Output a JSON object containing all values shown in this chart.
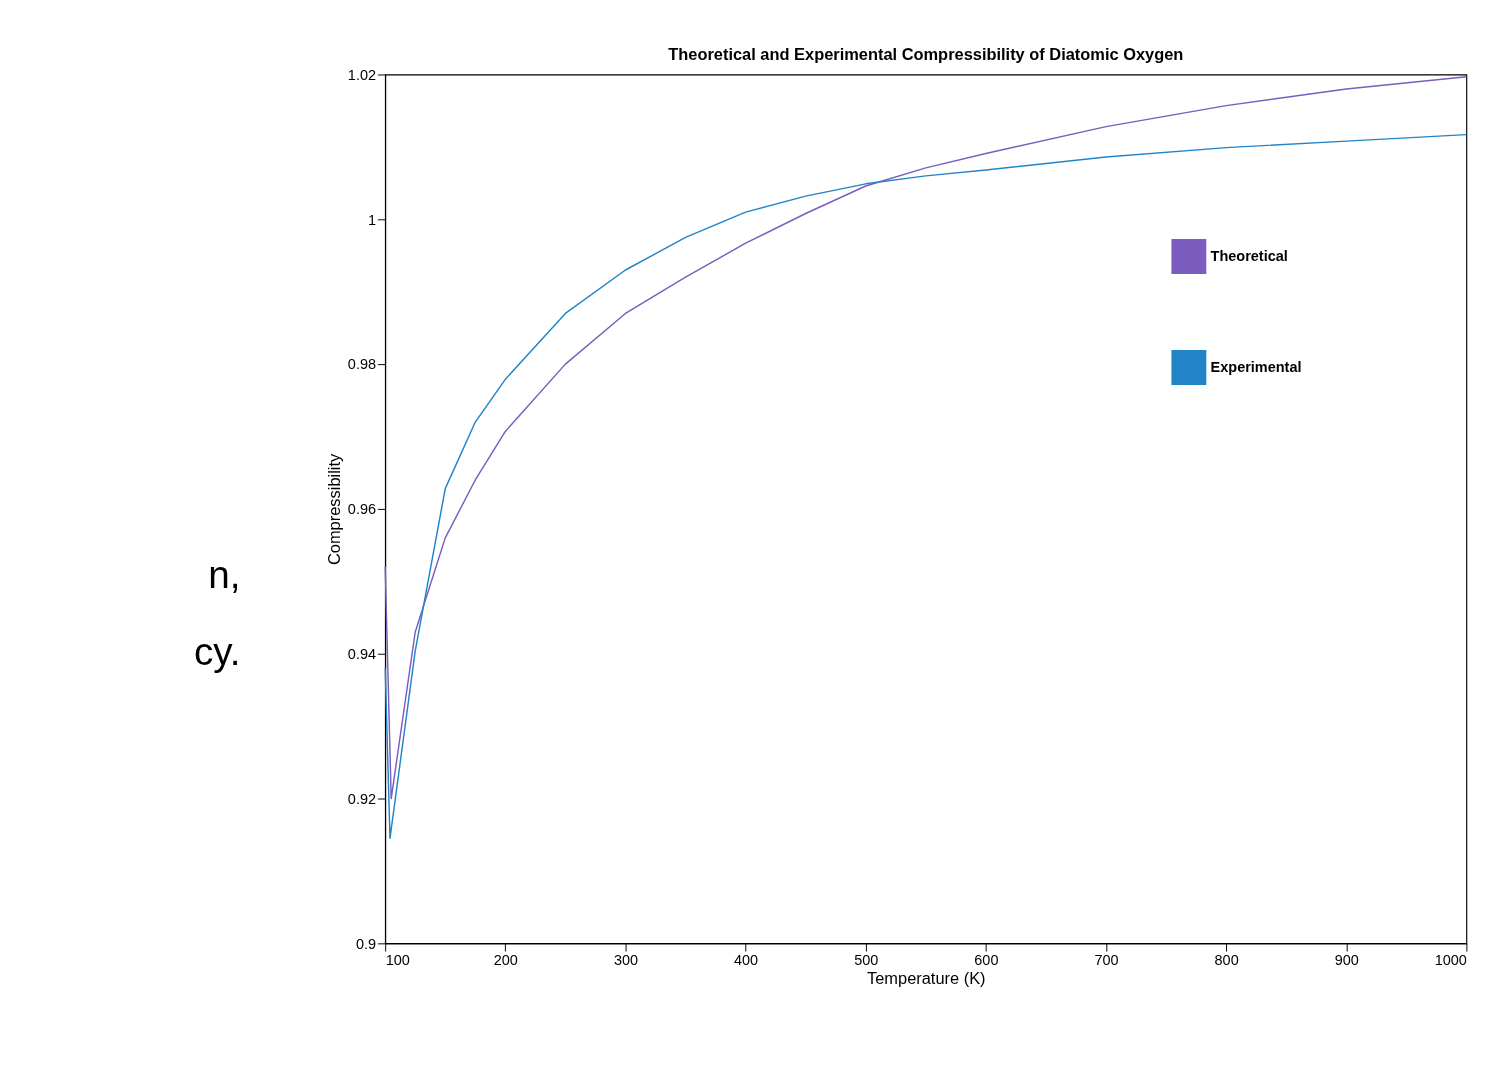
{
  "chart_data": {
    "type": "line",
    "title": "Theoretical and Experimental Compressibility of Diatomic Oxygen",
    "xlabel": "Temperature (K)",
    "ylabel": "Compressibility",
    "xlim": [
      100,
      1000
    ],
    "xticks": [
      100,
      200,
      300,
      400,
      500,
      600,
      700,
      800,
      900,
      1000
    ],
    "ylim": [
      0.9,
      1.02
    ],
    "yticks": [
      0.9,
      0.92,
      0.94,
      0.96,
      0.98,
      1,
      1.02
    ],
    "grid": false,
    "legend": "top right",
    "marker": "none",
    "line_style": "solid",
    "series": [
      {
        "name": "Theoretical",
        "color": "#7b5cbf",
        "x": [
          100,
          105,
          125,
          150,
          175,
          200,
          250,
          300,
          350,
          400,
          450,
          500,
          550,
          600,
          700,
          800,
          900,
          1000
        ],
        "values": [
          0.952,
          0.92,
          0.943,
          0.956,
          0.964,
          0.9707,
          0.98,
          0.987,
          0.992,
          0.9967,
          1.0008,
          1.0046,
          1.0071,
          1.0091,
          1.0128,
          1.0157,
          1.018,
          1.0197
        ]
      },
      {
        "name": "Experimental",
        "color": "#2284c8",
        "x": [
          100,
          104,
          125,
          150,
          175,
          200,
          250,
          300,
          350,
          400,
          450,
          500,
          550,
          600,
          700,
          800,
          900,
          1000
        ],
        "values": [
          0.938,
          0.9145,
          0.9404,
          0.9628,
          0.972,
          0.9779,
          0.987,
          0.993,
          0.9975,
          1.001,
          1.0032,
          1.0049,
          1.006,
          1.0068,
          1.0086,
          1.0099,
          1.0108,
          1.0117
        ]
      }
    ],
    "annotations": [
      "n,",
      "cy."
    ]
  }
}
